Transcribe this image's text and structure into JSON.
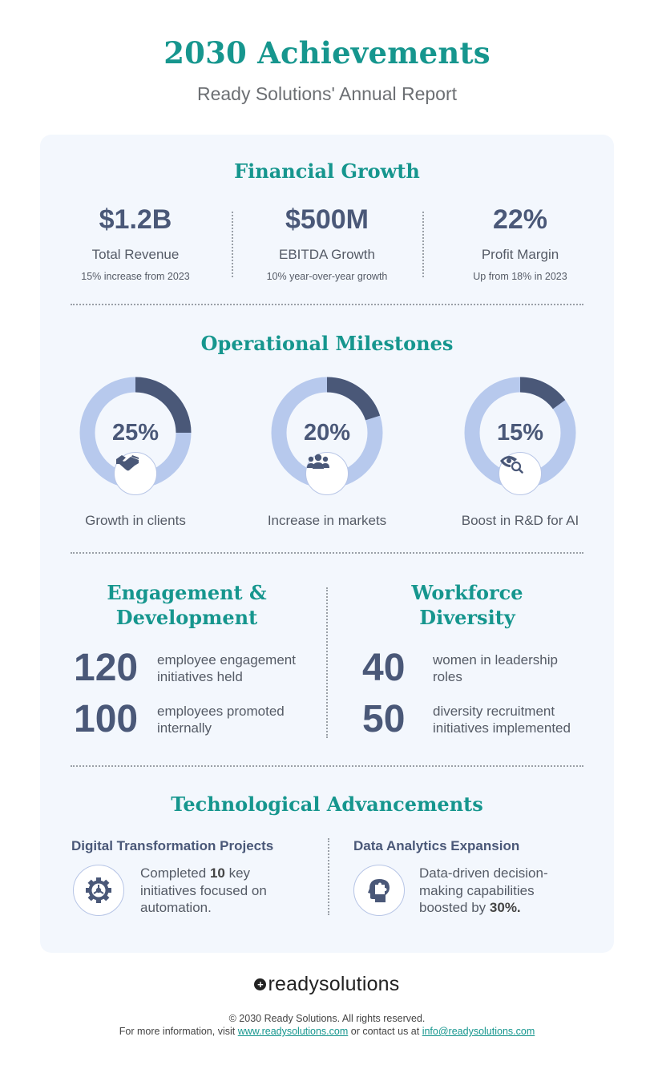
{
  "header": {
    "title": "2030 Achievements",
    "subtitle": "Ready Solutions' Annual Report"
  },
  "financial": {
    "title": "Financial Growth",
    "items": [
      {
        "value": "$1.2B",
        "label": "Total Revenue",
        "note": "15% increase from 2023"
      },
      {
        "value": "$500M",
        "label": "EBITDA Growth",
        "note": "10% year-over-year growth"
      },
      {
        "value": "22%",
        "label": "Profit Margin",
        "note": "Up from 18% in 2023"
      }
    ]
  },
  "operational": {
    "title": "Operational Milestones",
    "items": [
      {
        "percent": "25%",
        "fraction": 0.25,
        "label": "Growth in clients",
        "icon": "handshake-icon"
      },
      {
        "percent": "20%",
        "fraction": 0.2,
        "label": "Increase in markets",
        "icon": "people-group-icon"
      },
      {
        "percent": "15%",
        "fraction": 0.15,
        "label": "Boost in R&D for AI",
        "icon": "eye-search-icon"
      }
    ],
    "colors": {
      "filled": "#4a5878",
      "track": "#b7c9ed"
    }
  },
  "engagement": {
    "title_line1": "Engagement &",
    "title_line2": "Development",
    "stats": [
      {
        "number": "120",
        "text_line1": "employee engagement",
        "text_line2": "initiatives held"
      },
      {
        "number": "100",
        "text_line1": "employees promoted",
        "text_line2": "internally"
      }
    ]
  },
  "diversity": {
    "title_line1": "Workforce",
    "title_line2": "Diversity",
    "stats": [
      {
        "number": "40",
        "text_line1": "women in leadership",
        "text_line2": "roles"
      },
      {
        "number": "50",
        "text_line1": "diversity recruitment",
        "text_line2": "initiatives implemented"
      }
    ]
  },
  "technology": {
    "title": "Technological Advancements",
    "left": {
      "heading": "Digital Transformation Projects",
      "icon": "gear-icon",
      "text_before": "Completed ",
      "text_bold": "10",
      "text_after": " key initiatives focused on automation."
    },
    "right": {
      "heading": "Data Analytics Expansion",
      "icon": "head-puzzle-icon",
      "text_before": "Data-driven decision-making capabilities boosted by ",
      "text_bold": "30%.",
      "text_after": ""
    }
  },
  "footer": {
    "logo_text": "readysolutions",
    "copyright": "© 2030 Ready Solutions. All rights reserved.",
    "info_prefix": "For more information, visit ",
    "website": "www.readysolutions.com",
    "info_middle": " or contact us at ",
    "email": "info@readysolutions.com"
  },
  "colors": {
    "accent": "#16968e",
    "navy": "#4a5878",
    "card_bg": "#f3f7fd"
  }
}
